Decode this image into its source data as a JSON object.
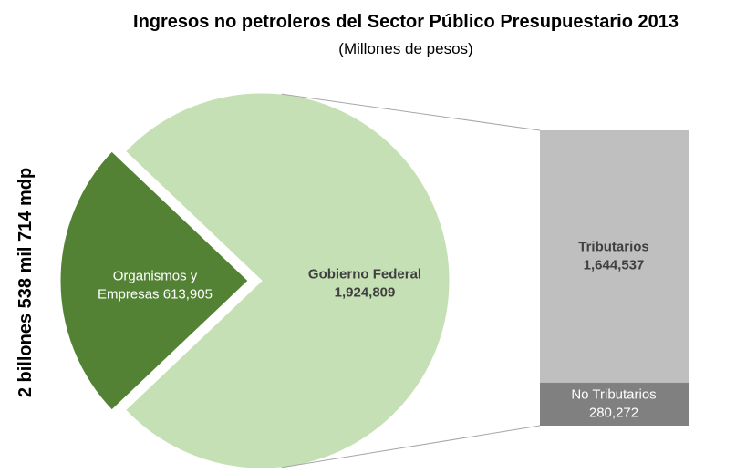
{
  "chart_data": {
    "type": "pie-of-bar",
    "title": "Ingresos no petroleros del Sector Público Presupuestario 2013",
    "subtitle": "(Millones de pesos)",
    "side_label": "2 billones 538 mil 714 mdp",
    "pie": {
      "categories": [
        "Organismos y Empresas",
        "Gobierno Federal"
      ],
      "values": [
        613905,
        1924809
      ],
      "value_labels": [
        "613,905",
        "1,924,809"
      ],
      "colors": [
        "#548235",
        "#c5e0b4"
      ]
    },
    "bar": {
      "categories": [
        "Tributarios",
        "No Tributarios"
      ],
      "values": [
        1644537,
        280272
      ],
      "value_labels": [
        "1,644,537",
        "280,272"
      ],
      "colors": [
        "#bfbfbf",
        "#808080"
      ]
    }
  }
}
